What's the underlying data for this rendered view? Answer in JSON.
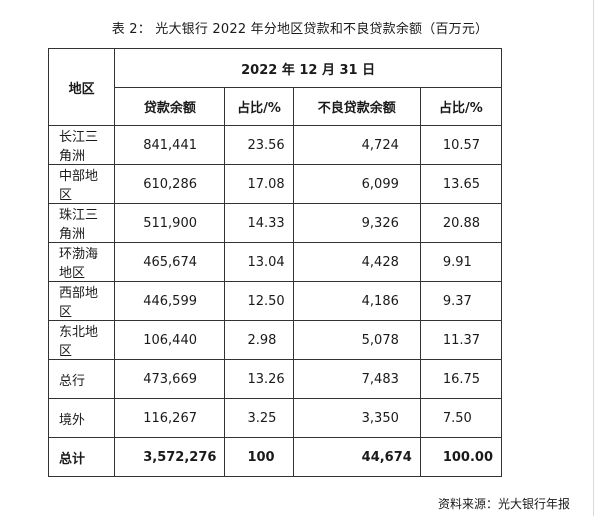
{
  "caption": "表 2：  光大银行 2022 年分地区贷款和不良贷款余额（百万元）",
  "table": {
    "region_header": "地区",
    "date_header": "2022 年 12 月 31 日",
    "col_headers": [
      "贷款余额",
      "占比/%",
      "不良贷款余额",
      "占比/%"
    ],
    "rows": [
      [
        "长江三角洲",
        "841,441",
        "23.56",
        "4,724",
        "10.57"
      ],
      [
        "中部地区",
        "610,286",
        "17.08",
        "6,099",
        "13.65"
      ],
      [
        "珠江三角洲",
        "511,900",
        "14.33",
        "9,326",
        "20.88"
      ],
      [
        "环渤海地区",
        "465,674",
        "13.04",
        "4,428",
        "9.91"
      ],
      [
        "西部地区",
        "446,599",
        "12.50",
        "4,186",
        "9.37"
      ],
      [
        "东北地区",
        "106,440",
        "2.98",
        "5,078",
        "11.37"
      ],
      [
        "总行",
        "473,669",
        "13.26",
        "7,483",
        "16.75"
      ],
      [
        "境外",
        "116,267",
        "3.25",
        "3,350",
        "7.50"
      ]
    ],
    "total_row": [
      "总计",
      "3,572,276",
      "100",
      "44,674",
      "100.00"
    ]
  },
  "source": "资料来源：光大银行年报"
}
